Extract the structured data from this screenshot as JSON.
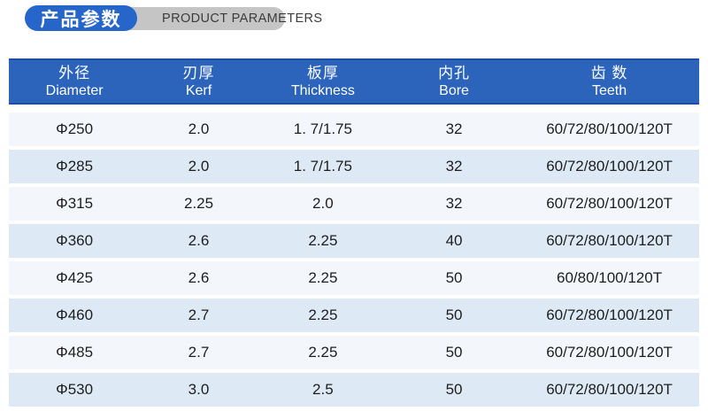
{
  "colors": {
    "page_bg": "#ffffff",
    "pill_blue": "#2666cb",
    "pill_gray": "#c5c5c5",
    "header_bg": "#2c63bb",
    "header_border": "#1e4ba5",
    "row_odd_bg": "#f3f7fb",
    "row_even_bg": "#dde9f4"
  },
  "header": {
    "title_cn": "产品参数",
    "title_en": "PRODUCT PARAMETERS"
  },
  "table": {
    "columns": [
      {
        "cn": "外径",
        "en": "Diameter"
      },
      {
        "cn": "刃厚",
        "en": "Kerf"
      },
      {
        "cn": "板厚",
        "en": "Thickness"
      },
      {
        "cn": "内孔",
        "en": "Bore"
      },
      {
        "cn": "齿 数",
        "en": "Teeth"
      }
    ],
    "rows": [
      [
        "Φ250",
        "2.0",
        "1. 7/1.75",
        "32",
        "60/72/80/100/120T"
      ],
      [
        "Φ285",
        "2.0",
        "1. 7/1.75",
        "32",
        "60/72/80/100/120T"
      ],
      [
        "Φ315",
        "2.25",
        "2.0",
        "32",
        "60/72/80/100/120T"
      ],
      [
        "Φ360",
        "2.6",
        "2.25",
        "40",
        "60/72/80/100/120T"
      ],
      [
        "Φ425",
        "2.6",
        "2.25",
        "50",
        "60/80/100/120T"
      ],
      [
        "Φ460",
        "2.7",
        "2.25",
        "50",
        "60/72/80/100/120T"
      ],
      [
        "Φ485",
        "2.7",
        "2.25",
        "50",
        "60/72/80/100/120T"
      ],
      [
        "Φ530",
        "3.0",
        "2.5",
        "50",
        "60/72/80/100/120T"
      ]
    ]
  }
}
